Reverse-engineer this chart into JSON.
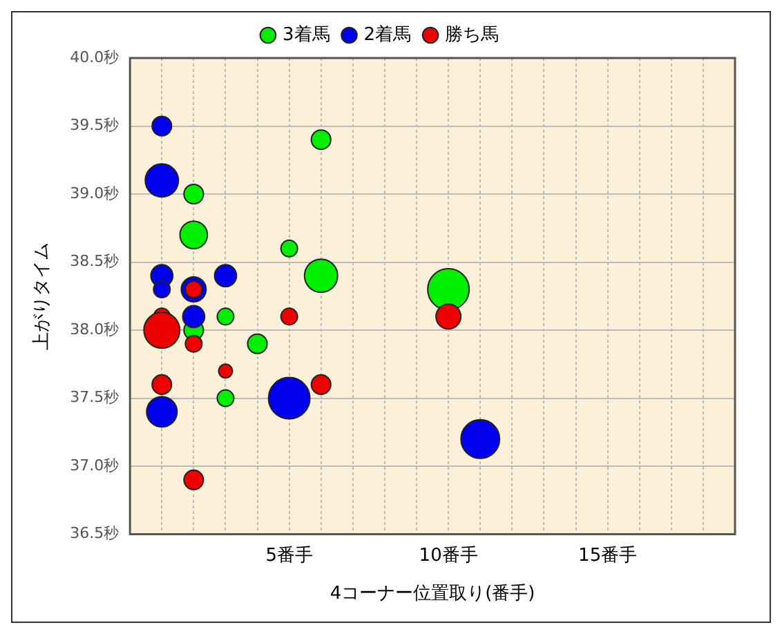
{
  "chart_data": {
    "type": "bubble",
    "xlabel": "4コーナー位置取り(番手)",
    "ylabel": "上がりタイム",
    "xlim": [
      0,
      19
    ],
    "xticks": [
      {
        "value": 1,
        "label": null
      },
      {
        "value": 2,
        "label": null
      },
      {
        "value": 3,
        "label": null
      },
      {
        "value": 4,
        "label": null
      },
      {
        "value": 5,
        "label": "5番手"
      },
      {
        "value": 6,
        "label": null
      },
      {
        "value": 7,
        "label": null
      },
      {
        "value": 8,
        "label": null
      },
      {
        "value": 9,
        "label": null
      },
      {
        "value": 10,
        "label": "10番手"
      },
      {
        "value": 11,
        "label": null
      },
      {
        "value": 12,
        "label": null
      },
      {
        "value": 13,
        "label": null
      },
      {
        "value": 14,
        "label": null
      },
      {
        "value": 15,
        "label": "15番手"
      },
      {
        "value": 16,
        "label": null
      },
      {
        "value": 17,
        "label": null
      },
      {
        "value": 18,
        "label": null
      }
    ],
    "ylim": [
      36.5,
      40.0
    ],
    "yticks": [
      {
        "value": 36.5,
        "label": "36.5秒"
      },
      {
        "value": 37.0,
        "label": "37.0秒"
      },
      {
        "value": 37.5,
        "label": "37.5秒"
      },
      {
        "value": 38.0,
        "label": "38.0秒"
      },
      {
        "value": 38.5,
        "label": "38.5秒"
      },
      {
        "value": 39.0,
        "label": "39.0秒"
      },
      {
        "value": 39.5,
        "label": "39.5秒"
      },
      {
        "value": 40.0,
        "label": "40.0秒"
      }
    ],
    "grid": true,
    "legend": "top",
    "series": [
      {
        "name": "3着馬",
        "color": "#00ee00",
        "x": [
          6,
          2,
          2,
          5,
          6,
          10,
          3,
          2,
          4,
          3
        ],
        "values": [
          39.4,
          39.0,
          38.7,
          38.6,
          38.4,
          38.3,
          38.1,
          38.0,
          37.9,
          37.5
        ],
        "sizes": [
          0.22,
          0.22,
          0.44,
          0.16,
          0.64,
          1,
          0.16,
          0.22,
          0.22,
          0.16
        ]
      },
      {
        "name": "2着馬",
        "color": "#0000ee",
        "x": [
          1,
          1,
          1,
          3,
          1,
          2,
          2,
          5,
          1,
          11
        ],
        "values": [
          39.5,
          39.1,
          38.4,
          38.4,
          38.3,
          38.3,
          38.1,
          37.5,
          37.4,
          37.2
        ],
        "sizes": [
          0.22,
          0.64,
          0.28,
          0.28,
          0.16,
          0.36,
          0.28,
          1,
          0.54,
          0.87
        ]
      },
      {
        "name": "勝ち馬",
        "color": "#ee0000",
        "x": [
          2,
          1,
          1,
          5,
          10,
          2,
          3,
          1,
          6,
          2
        ],
        "values": [
          38.3,
          38.1,
          38.0,
          38.1,
          38.1,
          37.9,
          37.7,
          37.6,
          37.6,
          36.9
        ],
        "sizes": [
          0.16,
          0.16,
          0.75,
          0.16,
          0.36,
          0.16,
          0.11,
          0.22,
          0.22,
          0.22
        ]
      }
    ]
  }
}
